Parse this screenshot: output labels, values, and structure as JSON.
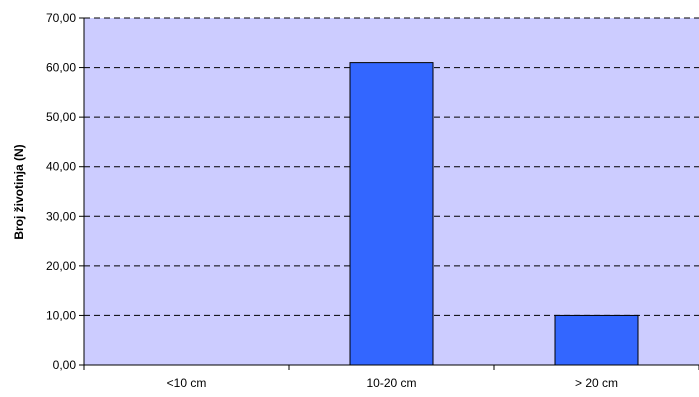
{
  "chart_data": {
    "type": "bar",
    "title": "",
    "xlabel": "",
    "ylabel": "Broj životinja (N)",
    "categories": [
      "<10 cm",
      "10-20 cm",
      "> 20 cm"
    ],
    "values": [
      0,
      61,
      10
    ],
    "ylim": [
      0,
      70
    ],
    "yticks": [
      "0,00",
      "10,00",
      "20,00",
      "30,00",
      "40,00",
      "50,00",
      "60,00",
      "70,00"
    ],
    "grid": true,
    "legend": "none",
    "colors": {
      "plot_background": "#CCCCFF",
      "bar": "#3366FF",
      "bar_border": "#000000",
      "gridline": "#000000"
    }
  }
}
